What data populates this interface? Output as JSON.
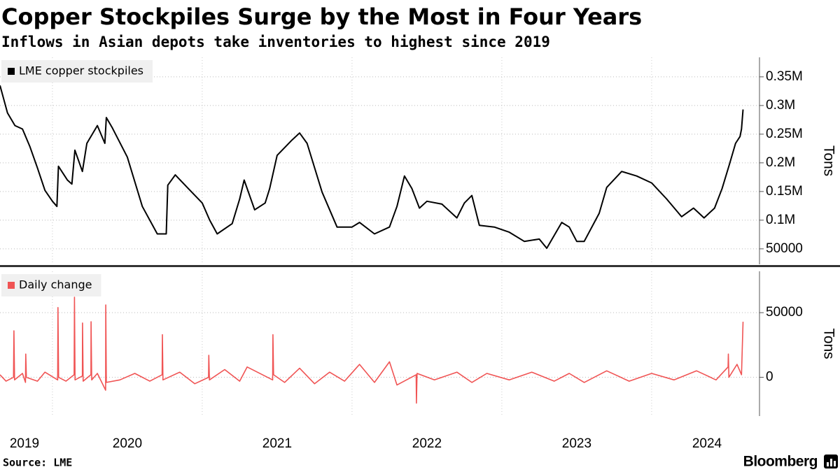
{
  "title": "Copper Stockpiles Surge by the Most in Four Years",
  "subtitle": "Inflows in Asian depots take inventories to highest since 2019",
  "source": "Source: LME",
  "brand": "Bloomberg",
  "chart_data": [
    {
      "type": "line",
      "y_label": "Tons",
      "x": [
        2019.65,
        2019.7,
        2019.75,
        2019.8,
        2019.85,
        2019.9,
        2019.95,
        2020.0,
        2020.03,
        2020.04,
        2020.1,
        2020.13,
        2020.15,
        2020.2,
        2020.23,
        2020.3,
        2020.35,
        2020.36,
        2020.4,
        2020.5,
        2020.6,
        2020.7,
        2020.76,
        2020.77,
        2020.82,
        2020.9,
        2021.0,
        2021.05,
        2021.1,
        2021.2,
        2021.25,
        2021.28,
        2021.35,
        2021.42,
        2021.45,
        2021.5,
        2021.6,
        2021.65,
        2021.7,
        2021.8,
        2021.9,
        2022.0,
        2022.05,
        2022.15,
        2022.25,
        2022.3,
        2022.35,
        2022.4,
        2022.45,
        2022.5,
        2022.6,
        2022.7,
        2022.75,
        2022.8,
        2022.85,
        2022.95,
        2023.05,
        2023.15,
        2023.25,
        2023.3,
        2023.4,
        2023.45,
        2023.5,
        2023.55,
        2023.65,
        2023.7,
        2023.8,
        2023.9,
        2024.0,
        2024.1,
        2024.2,
        2024.28,
        2024.35,
        2024.42,
        2024.47,
        2024.52,
        2024.56,
        2024.59,
        2024.6,
        2024.61
      ],
      "series": [
        {
          "name": "LME copper stockpiles",
          "color": "#000000",
          "values": [
            335000,
            287000,
            265000,
            259000,
            228000,
            191000,
            152000,
            133000,
            124000,
            194000,
            170000,
            163000,
            222000,
            185000,
            234000,
            265000,
            234000,
            279000,
            261000,
            210000,
            124000,
            76000,
            76000,
            161000,
            179000,
            157000,
            130000,
            100000,
            76000,
            94000,
            137000,
            170000,
            118000,
            130000,
            155000,
            213000,
            240000,
            252000,
            234000,
            149000,
            88000,
            88000,
            96000,
            76000,
            88000,
            124000,
            177000,
            155000,
            121000,
            133000,
            128000,
            104000,
            130000,
            143000,
            91000,
            88000,
            79000,
            63000,
            67000,
            51000,
            96000,
            88000,
            63000,
            63000,
            112000,
            157000,
            185000,
            177000,
            165000,
            137000,
            106000,
            121000,
            104000,
            121000,
            155000,
            198000,
            234000,
            246000,
            259000,
            293000
          ]
        }
      ],
      "xlim": [
        2019.65,
        2024.72
      ],
      "ylim": [
        23000,
        384000
      ],
      "yticks": [
        50000,
        {
          "value": 100000,
          "label": "0.1M"
        },
        {
          "value": 150000,
          "label": "0.15M"
        },
        {
          "value": 200000,
          "label": "0.2M"
        },
        {
          "value": 250000,
          "label": "0.25M"
        },
        {
          "value": 300000,
          "label": "0.3M"
        },
        {
          "value": 350000,
          "label": "0.35M"
        }
      ],
      "grid": true
    },
    {
      "type": "line",
      "y_label": "Tons",
      "x": [
        2019.65,
        2019.69,
        2019.74,
        2019.743,
        2019.747,
        2019.8,
        2019.82,
        2019.822,
        2019.826,
        2019.9,
        2019.95,
        2020.035,
        2020.037,
        2020.041,
        2020.09,
        2020.145,
        2020.147,
        2020.151,
        2020.2,
        2020.201,
        2020.205,
        2020.257,
        2020.258,
        2020.262,
        2020.3,
        2020.355,
        2020.356,
        2020.36,
        2020.45,
        2020.55,
        2020.65,
        2020.732,
        2020.734,
        2020.738,
        2020.85,
        2020.95,
        2021.042,
        2021.044,
        2021.048,
        2021.15,
        2021.25,
        2021.3,
        2021.47,
        2021.472,
        2021.476,
        2021.55,
        2021.65,
        2021.75,
        2021.85,
        2021.95,
        2022.05,
        2022.15,
        2022.25,
        2022.3,
        2022.428,
        2022.43,
        2022.434,
        2022.55,
        2022.7,
        2022.8,
        2022.9,
        2023.05,
        2023.2,
        2023.35,
        2023.45,
        2023.55,
        2023.7,
        2023.85,
        2024.0,
        2024.15,
        2024.3,
        2024.43,
        2024.51,
        2024.512,
        2024.516,
        2024.57,
        2024.6,
        2024.61
      ],
      "series": [
        {
          "name": "Daily change",
          "color": "#f05454",
          "values": [
            2000,
            -3000,
            0,
            36000,
            -2000,
            3000,
            -4000,
            18000,
            0,
            -3000,
            4000,
            -2000,
            54000,
            0,
            -3000,
            2000,
            62000,
            -2000,
            1000,
            42000,
            -3000,
            2000,
            43000,
            -2000,
            3000,
            -10000,
            56000,
            -4000,
            -2000,
            3000,
            -3000,
            2000,
            33000,
            -2000,
            4000,
            -5000,
            0,
            17000,
            -2000,
            6000,
            -3000,
            8000,
            -2000,
            33000,
            2000,
            -4000,
            7000,
            -5000,
            4000,
            -3000,
            10000,
            -4000,
            12000,
            -6000,
            2000,
            -20000,
            3000,
            -2000,
            4000,
            -4000,
            3000,
            -2000,
            4000,
            -3000,
            3000,
            -4000,
            5000,
            -3000,
            3000,
            -2000,
            5000,
            -2000,
            8000,
            18000,
            0,
            10000,
            2000,
            43000
          ]
        }
      ],
      "xlim": [
        2019.65,
        2024.72
      ],
      "ylim": [
        -30000,
        82000
      ],
      "yticks": [
        0,
        50000
      ],
      "xticks": [
        2019,
        2020,
        2021,
        2022,
        2023,
        2024
      ],
      "grid": true
    }
  ]
}
